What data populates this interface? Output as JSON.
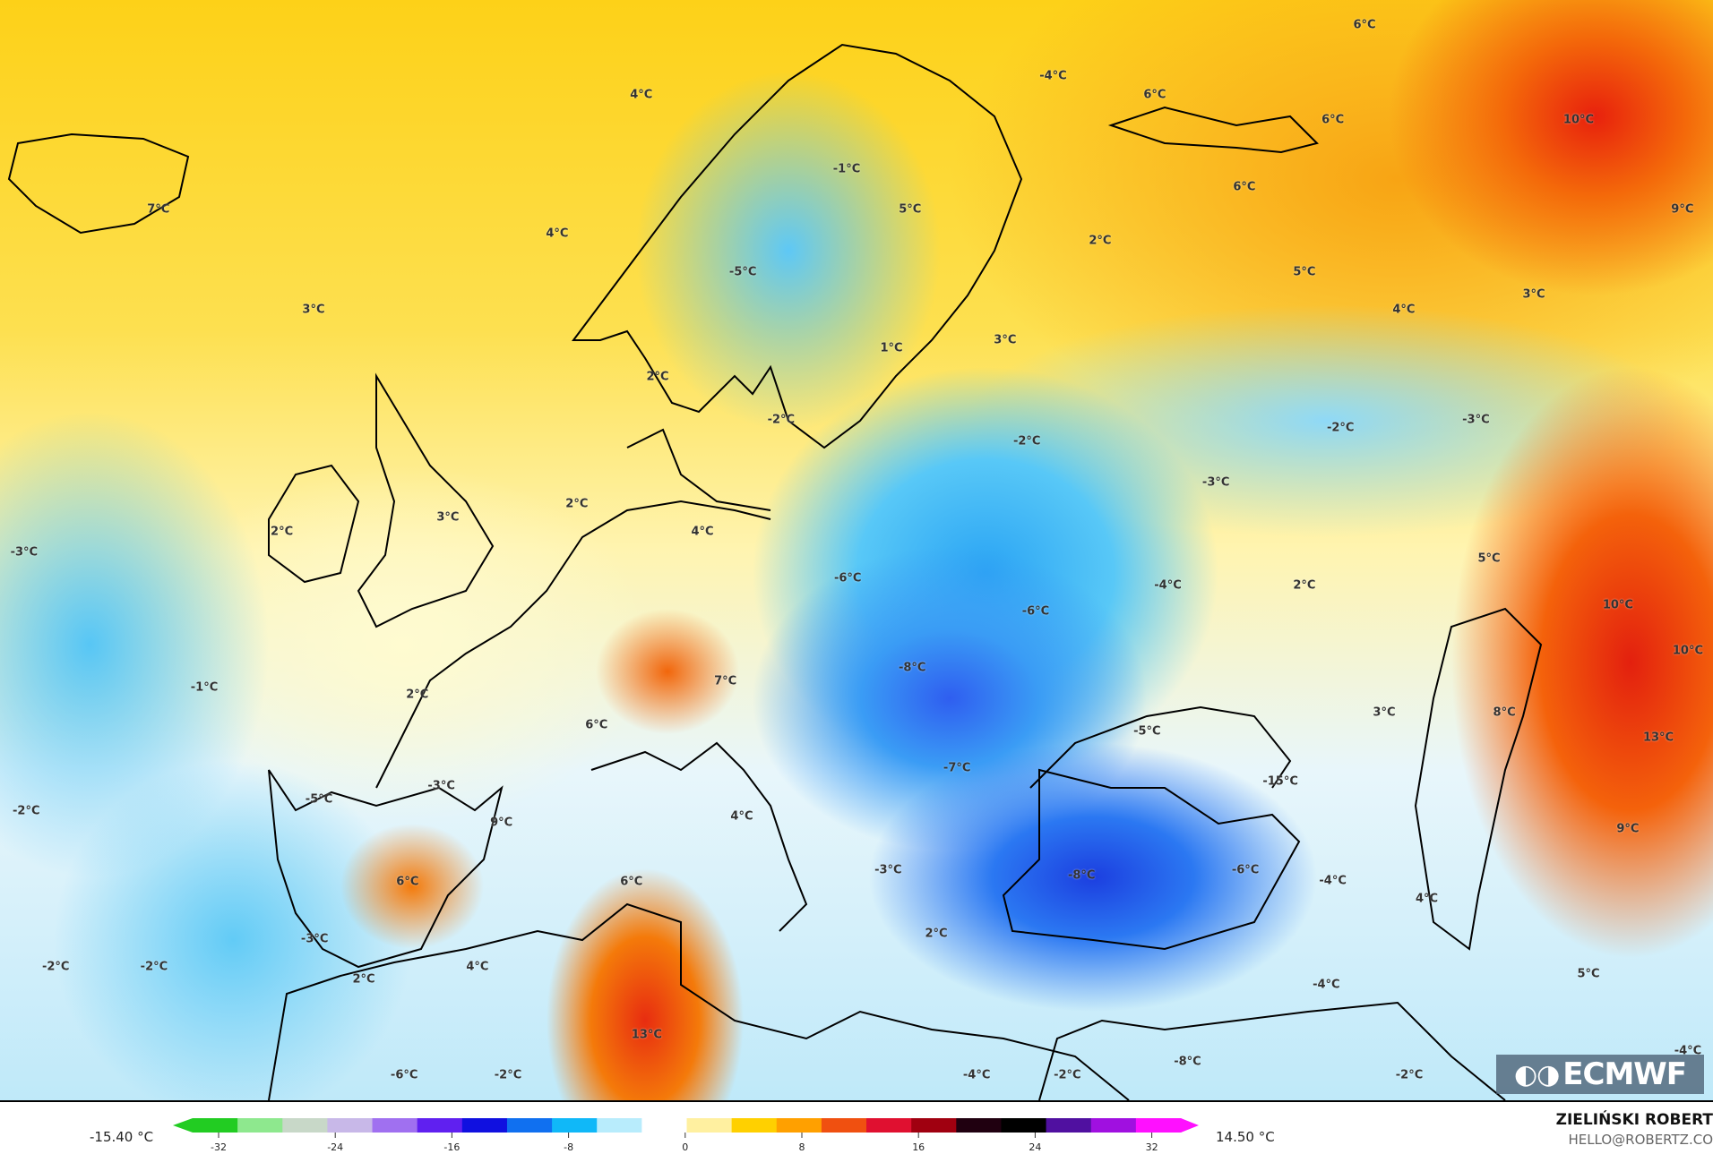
{
  "map": {
    "labels": [
      "4°C",
      "6°C",
      "-4°C",
      "6°C",
      "6°C",
      "10°C",
      "7°C",
      "-1°C",
      "5°C",
      "4°C",
      "6°C",
      "9°C",
      "-5°C",
      "2°C",
      "5°C",
      "3°C",
      "4°C",
      "3°C",
      "1°C",
      "3°C",
      "2°C",
      "-2°C",
      "-2°C",
      "-3°C",
      "-2°C",
      "-3°C",
      "2°C",
      "3°C",
      "4°C",
      "2°C",
      "-3°C",
      "5°C",
      "-6°C",
      "-4°C",
      "2°C",
      "-6°C",
      "10°C",
      "-8°C",
      "10°C",
      "-1°C",
      "2°C",
      "7°C",
      "6°C",
      "3°C",
      "8°C",
      "-5°C",
      "13°C",
      "-7°C",
      "-15°C",
      "-2°C",
      "-5°C",
      "-3°C",
      "9°C",
      "4°C",
      "9°C",
      "-3°C",
      "-8°C",
      "-6°C",
      "6°C",
      "6°C",
      "-4°C",
      "4°C",
      "-3°C",
      "2°C",
      "-2°C",
      "-2°C",
      "2°C",
      "4°C",
      "5°C",
      "-4°C",
      "13°C",
      "-6°C",
      "-2°C",
      "-4°C",
      "-2°C",
      "-8°C",
      "-2°C",
      "-4°C"
    ],
    "logo": "ECMWF"
  },
  "colorbar": {
    "min_label": "-15.40 °C",
    "max_label": "14.50 °C",
    "ticks": [
      "-32",
      "-24",
      "-16",
      "-8",
      "0",
      "8",
      "16",
      "24",
      "32"
    ],
    "colors": [
      "#22cc22",
      "#8ee88e",
      "#c8d8c8",
      "#c8b8e8",
      "#a070f0",
      "#6020f0",
      "#1010e0",
      "#1070f0",
      "#10b8f8",
      "#b8ecfc",
      "#ffffff",
      "#fff0a0",
      "#ffd000",
      "#ffa000",
      "#f05010",
      "#e01030",
      "#a00010",
      "#200010",
      "#000000",
      "#5010a0",
      "#a010e0",
      "#ff10ff"
    ]
  },
  "credits": {
    "author": "ZIELIŃSKI ROBERT",
    "email": "HELLO@ROBERTZ.CO"
  }
}
